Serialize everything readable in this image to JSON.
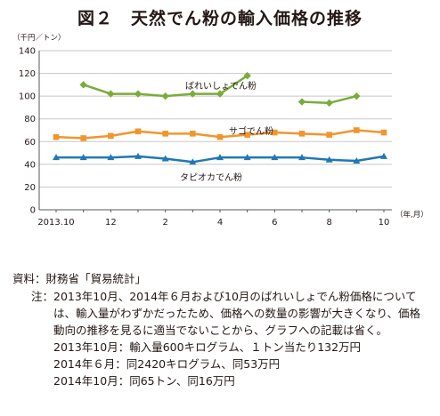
{
  "title": "図２　天然でん粉の輸入価格の推移",
  "chart_data": {
    "type": "line",
    "ylabel": "（千円／トン）",
    "xlabel": "（年,月）",
    "ylim": [
      0,
      140
    ],
    "yticks": [
      "0",
      "20",
      "40",
      "60",
      "80",
      "100",
      "120",
      "140"
    ],
    "grid": true,
    "x": [
      "2013.10",
      "11",
      "12",
      "1",
      "2",
      "3",
      "4",
      "5",
      "6",
      "7",
      "8",
      "9",
      "10"
    ],
    "xtick_labels": [
      "2013.10",
      "",
      "12",
      "",
      "2",
      "",
      "4",
      "",
      "6",
      "",
      "8",
      "",
      "10"
    ],
    "series": [
      {
        "name": "ばれいしょでん粉",
        "color": "#7aac38",
        "marker": "diamond",
        "values": [
          null,
          110,
          102,
          102,
          100,
          102,
          102,
          118,
          null,
          95,
          94,
          100,
          null
        ]
      },
      {
        "name": "サゴでん粉",
        "color": "#f0962d",
        "marker": "square",
        "values": [
          64,
          63,
          65,
          69,
          67,
          67,
          64,
          66,
          68,
          67,
          66,
          70,
          68
        ]
      },
      {
        "name": "タピオカでん粉",
        "color": "#1f78b4",
        "marker": "triangle",
        "values": [
          46,
          46,
          46,
          47,
          45,
          42,
          46,
          46,
          46,
          46,
          44,
          43,
          47
        ]
      }
    ]
  },
  "notes": {
    "source_label": "資料：",
    "source_text": "財務省「貿易統計」",
    "note_label": "注：",
    "note_text": "2013年10月、2014年６月および10月のばれいしょでん粉価格については、輸入量がわずかだったため、価格への数量の影響が大きくなり、価格動向の推移を見るに適当でないことから、グラフへの記載は省く。",
    "lines": [
      "2013年10月：輸入量600キログラム、１トン当たり132万円",
      "2014年６月：同2420キログラム、同53万円",
      "2014年10月：同65トン、同16万円"
    ]
  }
}
